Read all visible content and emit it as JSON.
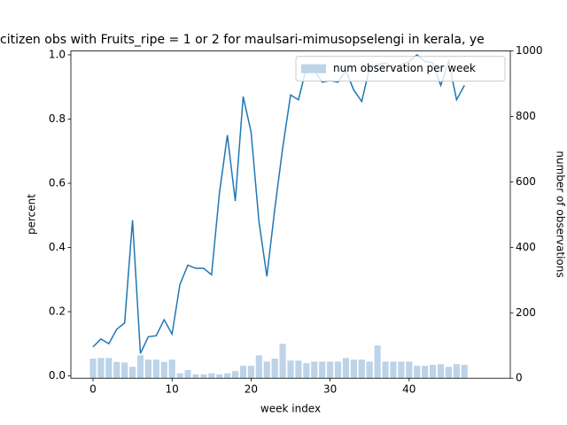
{
  "chart_data": {
    "type": "combo",
    "title": "citizen obs with Fruits_ripe = 1 or 2 for maulsari-mimusopselengi in kerala, ye",
    "x_label": "week index",
    "y_label": "percent",
    "y2_label": "number of observations",
    "x": [
      0,
      1,
      2,
      3,
      4,
      5,
      6,
      7,
      8,
      9,
      10,
      11,
      12,
      13,
      14,
      15,
      16,
      17,
      18,
      19,
      20,
      21,
      22,
      23,
      24,
      25,
      26,
      27,
      28,
      29,
      30,
      31,
      32,
      33,
      34,
      35,
      36,
      37,
      38,
      39,
      40,
      41,
      42,
      43,
      44,
      45,
      46,
      47
    ],
    "series": [
      {
        "type": "line",
        "color": "#1f77b4",
        "axis": "y",
        "values": [
          0.09,
          0.115,
          0.1,
          0.145,
          0.165,
          0.485,
          0.07,
          0.122,
          0.125,
          0.175,
          0.13,
          0.285,
          0.345,
          0.335,
          0.335,
          0.315,
          0.57,
          0.75,
          0.545,
          0.87,
          0.76,
          0.48,
          0.31,
          0.52,
          0.71,
          0.875,
          0.86,
          0.96,
          0.95,
          0.915,
          0.92,
          0.915,
          0.95,
          0.89,
          0.855,
          0.96,
          0.97,
          0.975,
          0.96,
          0.97,
          0.98,
          1.0,
          0.98,
          0.975,
          0.905,
          0.98,
          0.86,
          0.905
        ]
      },
      {
        "type": "bar",
        "name": "num observation per week",
        "color": "#bcd3e8",
        "axis": "y2",
        "values": [
          60,
          62,
          62,
          50,
          48,
          35,
          70,
          57,
          57,
          50,
          57,
          15,
          25,
          12,
          12,
          15,
          12,
          15,
          22,
          38,
          38,
          70,
          51,
          60,
          105,
          54,
          54,
          46,
          51,
          51,
          51,
          51,
          62,
          57,
          57,
          51,
          100,
          51,
          51,
          51,
          51,
          38,
          38,
          41,
          43,
          35,
          43,
          41
        ]
      }
    ],
    "xlim": [
      -2.8,
      52.8
    ],
    "xticks": [
      0,
      10,
      20,
      30,
      40
    ],
    "ylim": [
      -0.0074,
      1.012
    ],
    "yticks": [
      {
        "value": 0,
        "label": "0.0"
      },
      0.2,
      0.4,
      0.6,
      0.8,
      {
        "value": 1,
        "label": "1.0"
      }
    ],
    "y2lim": [
      0,
      1000
    ],
    "y2ticks": [
      0,
      200,
      400,
      600,
      800,
      1000
    ],
    "legend": "upper right"
  }
}
